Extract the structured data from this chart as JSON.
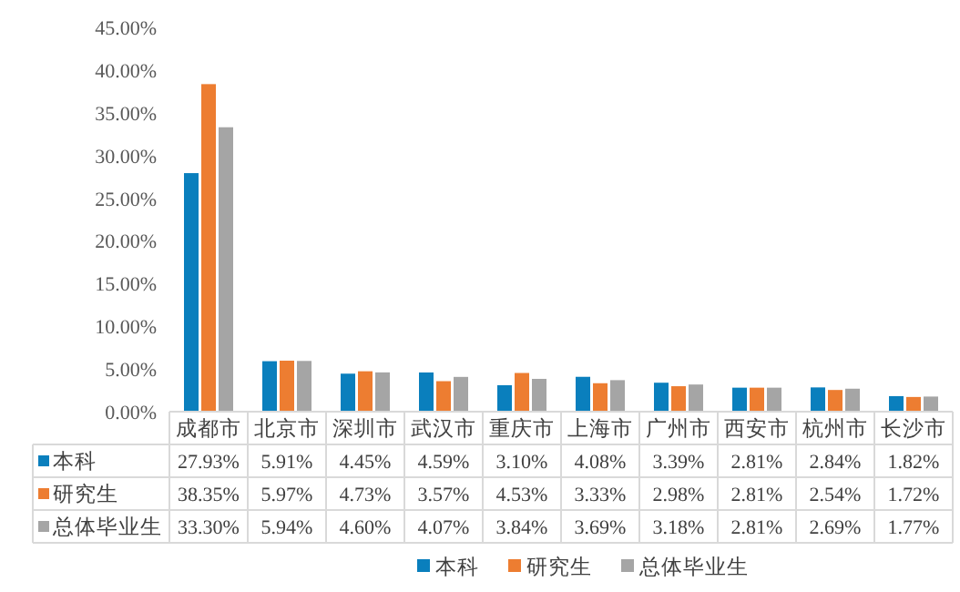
{
  "chart_data": {
    "type": "bar",
    "categories": [
      "成都市",
      "北京市",
      "深圳市",
      "武汉市",
      "重庆市",
      "上海市",
      "广州市",
      "西安市",
      "杭州市",
      "长沙市"
    ],
    "series": [
      {
        "name": "本科",
        "color": "#0a7fbd",
        "values": [
          27.93,
          5.91,
          4.45,
          4.59,
          3.1,
          4.08,
          3.39,
          2.81,
          2.84,
          1.82
        ],
        "value_labels": [
          "27.93%",
          "5.91%",
          "4.45%",
          "4.59%",
          "3.10%",
          "4.08%",
          "3.39%",
          "2.81%",
          "2.84%",
          "1.82%"
        ]
      },
      {
        "name": "研究生",
        "color": "#ed7d31",
        "values": [
          38.35,
          5.97,
          4.73,
          3.57,
          4.53,
          3.33,
          2.98,
          2.81,
          2.54,
          1.72
        ],
        "value_labels": [
          "38.35%",
          "5.97%",
          "4.73%",
          "3.57%",
          "4.53%",
          "3.33%",
          "2.98%",
          "2.81%",
          "2.54%",
          "1.72%"
        ]
      },
      {
        "name": "总体毕业生",
        "color": "#a5a5a5",
        "values": [
          33.3,
          5.94,
          4.6,
          4.07,
          3.84,
          3.69,
          3.18,
          2.81,
          2.69,
          1.77
        ],
        "value_labels": [
          "33.30%",
          "5.94%",
          "4.60%",
          "4.07%",
          "3.84%",
          "3.69%",
          "3.18%",
          "2.81%",
          "2.69%",
          "1.77%"
        ]
      }
    ],
    "ylim": [
      0,
      45
    ],
    "yticks": [
      {
        "value": 0,
        "label": "0.00%"
      },
      {
        "value": 5,
        "label": "5.00%"
      },
      {
        "value": 10,
        "label": "10.00%"
      },
      {
        "value": 15,
        "label": "15.00%"
      },
      {
        "value": 20,
        "label": "20.00%"
      },
      {
        "value": 25,
        "label": "25.00%"
      },
      {
        "value": 30,
        "label": "30.00%"
      },
      {
        "value": 35,
        "label": "35.00%"
      },
      {
        "value": 40,
        "label": "40.00%"
      },
      {
        "value": 45,
        "label": "45.00%"
      }
    ],
    "grid": false,
    "legend": "bottom"
  }
}
